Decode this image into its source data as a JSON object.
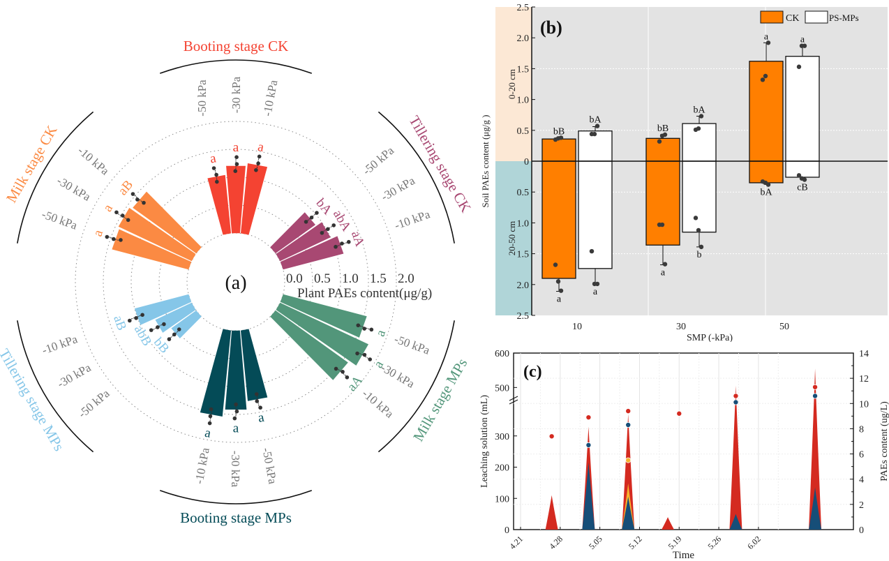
{
  "chart_data": [
    {
      "type": "bar",
      "subtype": "radial",
      "panel_label": "(a)",
      "title": "",
      "axis_label": "Plant PAEs content(μg/g)",
      "radial_ticks": [
        "0.0",
        "0.5",
        "1.0",
        "1.5",
        "2.0"
      ],
      "rlim": [
        0,
        2.0
      ],
      "groups": [
        {
          "name": "Booting stage CK",
          "color": "#F44332",
          "categories": [
            "-50 kPa",
            "-30 kPa",
            "-10 kPa"
          ],
          "values": [
            1.05,
            1.21,
            1.26
          ],
          "labels": [
            "a",
            "a",
            "a"
          ]
        },
        {
          "name": "Tillering stage CK",
          "color": "#A84872",
          "categories": [
            "-50 kPa",
            "-30 kPa",
            "-10 kPa"
          ],
          "values": [
            0.88,
            1.0,
            1.12
          ],
          "labels": [
            "bA",
            "abA",
            "aA"
          ]
        },
        {
          "name": "Milk stage MPs",
          "color": "#52967A",
          "categories": [
            "-50 kPa",
            "-30 kPa",
            "-10 kPa"
          ],
          "values": [
            1.55,
            1.75,
            1.6
          ],
          "labels": [
            "a",
            "a",
            "aA"
          ]
        },
        {
          "name": "Booting stage MPs",
          "color": "#044B57",
          "categories": [
            "-50 kPa",
            "-30 kPa",
            "-10 kPa"
          ],
          "values": [
            1.27,
            1.42,
            1.55
          ],
          "labels": [
            "a",
            "a",
            "a"
          ]
        },
        {
          "name": "Tillering stage MPs",
          "color": "#85C6E8",
          "categories": [
            "-50 kPa",
            "-30 kPa",
            "-10 kPa"
          ],
          "values": [
            0.55,
            0.72,
            1.0
          ],
          "labels": [
            "bB",
            "abB",
            "aB"
          ]
        },
        {
          "name": "Milk stage CK",
          "color": "#FB8A43",
          "categories": [
            "-50 kPa",
            "-30 kPa",
            "-10 kPa"
          ],
          "values": [
            1.42,
            1.45,
            1.4
          ],
          "labels": [
            "a",
            "a",
            "aB"
          ]
        }
      ]
    },
    {
      "type": "bar",
      "panel_label": "(b)",
      "title": "",
      "xlabel": "SMP (-kPa)",
      "ylabel": "Soil PAEs content (μg/g )",
      "categories": [
        "10",
        "30",
        "50"
      ],
      "ylim": [
        -2.5,
        2.5
      ],
      "yticks_top": [
        "2.5",
        "2.0",
        "1.5",
        "1.0",
        "0.5",
        "0"
      ],
      "yticks_bottom": [
        "0.5",
        "1.0",
        "1.5",
        "2.0",
        "2.5"
      ],
      "depth_bands": [
        {
          "label": "0-20 cm",
          "color": "#FCE8D5"
        },
        {
          "label": "20-50 cm",
          "color": "#B0D5D8"
        }
      ],
      "legend": {
        "position": "top-right",
        "entries": [
          {
            "name": "CK",
            "color": "#FF7F00"
          },
          {
            "name": "PS-MPs",
            "color": "#FFFFFF"
          }
        ]
      },
      "series": [
        {
          "name": "CK",
          "color": "#FF7F00",
          "top_values": [
            0.36,
            0.37,
            1.62
          ],
          "top_err": [
            0.02,
            0.06,
            0.3
          ],
          "top_labels": [
            "bB",
            "bB",
            "a"
          ],
          "top_points": [
            [
              0.35,
              0.37,
              0.38
            ],
            [
              0.32,
              0.41,
              0.43
            ],
            [
              1.32,
              1.38,
              1.92
            ]
          ],
          "bottom_values": [
            1.9,
            1.36,
            0.35
          ],
          "bottom_err": [
            0.21,
            0.32,
            0.02
          ],
          "bottom_labels": [
            "a",
            "a",
            "bA"
          ],
          "bottom_points": [
            [
              1.68,
              1.95,
              2.1
            ],
            [
              1.03,
              1.03,
              1.67
            ],
            [
              0.33,
              0.35,
              0.38
            ]
          ]
        },
        {
          "name": "PS-MPs",
          "color": "#FFFFFF",
          "top_values": [
            0.49,
            0.61,
            1.7
          ],
          "top_err": [
            0.07,
            0.12,
            0.17
          ],
          "top_labels": [
            "bA",
            "bA",
            "a"
          ],
          "top_points": [
            [
              0.44,
              0.44,
              0.57
            ],
            [
              0.51,
              0.53,
              0.73
            ],
            [
              1.53,
              1.87,
              1.87
            ]
          ],
          "bottom_values": [
            1.74,
            1.15,
            0.26
          ],
          "bottom_err": [
            0.24,
            0.24,
            0.03
          ],
          "bottom_labels": [
            "a",
            "b",
            "cB"
          ],
          "bottom_points": [
            [
              1.46,
              1.99,
              1.99
            ],
            [
              0.92,
              1.12,
              1.39
            ],
            [
              0.23,
              0.28,
              0.3
            ]
          ]
        }
      ],
      "grid": true
    },
    {
      "type": "area",
      "panel_label": "(c)",
      "title": "",
      "xlabel": "Time",
      "ylabel_left": "Leaching solution (mL)",
      "ylabel_right": "PAEs content (ug/L)",
      "x_ticks": [
        "4.21",
        "4.28",
        "5.05",
        "5.12",
        "5.19",
        "5.26",
        "6.02"
      ],
      "y_left_ticks": [
        "0",
        "100",
        "200",
        "300",
        "500",
        "600"
      ],
      "y_left_break": [
        400,
        450
      ],
      "y_right_ticks": [
        "0",
        "2",
        "4",
        "6",
        "8",
        "10",
        "12",
        "14"
      ],
      "ylim_left": [
        0,
        600
      ],
      "ylim_right": [
        0,
        14
      ],
      "grid": true,
      "series": [
        {
          "name": "red",
          "color": "#D42A20",
          "peaks": [
            {
              "day": 5.5,
              "volume": 110
            },
            {
              "day": 12,
              "volume": 330
            },
            {
              "day": 19,
              "volume": 370
            },
            {
              "day": 26,
              "volume": 40
            },
            {
              "day": 38,
              "volume": 505
            },
            {
              "day": 52,
              "volume": 555
            }
          ],
          "points_ug_L": [
            {
              "day": 5.5,
              "value": 7.4
            },
            {
              "day": 12,
              "value": 8.9
            },
            {
              "day": 19,
              "value": 9.4
            },
            {
              "day": 28,
              "value": 9.2
            },
            {
              "day": 38,
              "value": 10.6
            },
            {
              "day": 52,
              "value": 11.3
            }
          ]
        },
        {
          "name": "yellow",
          "color": "#F7B42E",
          "peaks": [
            {
              "day": 19,
              "volume": 148
            }
          ],
          "points_ug_L": [
            {
              "day": 19,
              "value": 5.5
            }
          ]
        },
        {
          "name": "blue",
          "color": "#164E78",
          "peaks": [
            {
              "day": 12,
              "volume": 215
            },
            {
              "day": 19,
              "volume": 105
            },
            {
              "day": 38,
              "volume": 50
            },
            {
              "day": 52,
              "volume": 135
            }
          ],
          "points_ug_L": [
            {
              "day": 12,
              "value": 6.7
            },
            {
              "day": 19,
              "value": 8.3
            },
            {
              "day": 38,
              "value": 10.1
            },
            {
              "day": 52,
              "value": 10.6
            }
          ]
        }
      ]
    }
  ]
}
